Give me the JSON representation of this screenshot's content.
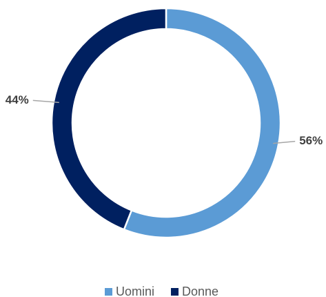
{
  "chart_data": {
    "type": "donut",
    "categories": [
      "Uomini",
      "Donne"
    ],
    "values": [
      56,
      44
    ],
    "value_labels": [
      "56%",
      "44%"
    ],
    "colors": [
      "#5b9bd5",
      "#002060"
    ],
    "legend": "bottom"
  }
}
